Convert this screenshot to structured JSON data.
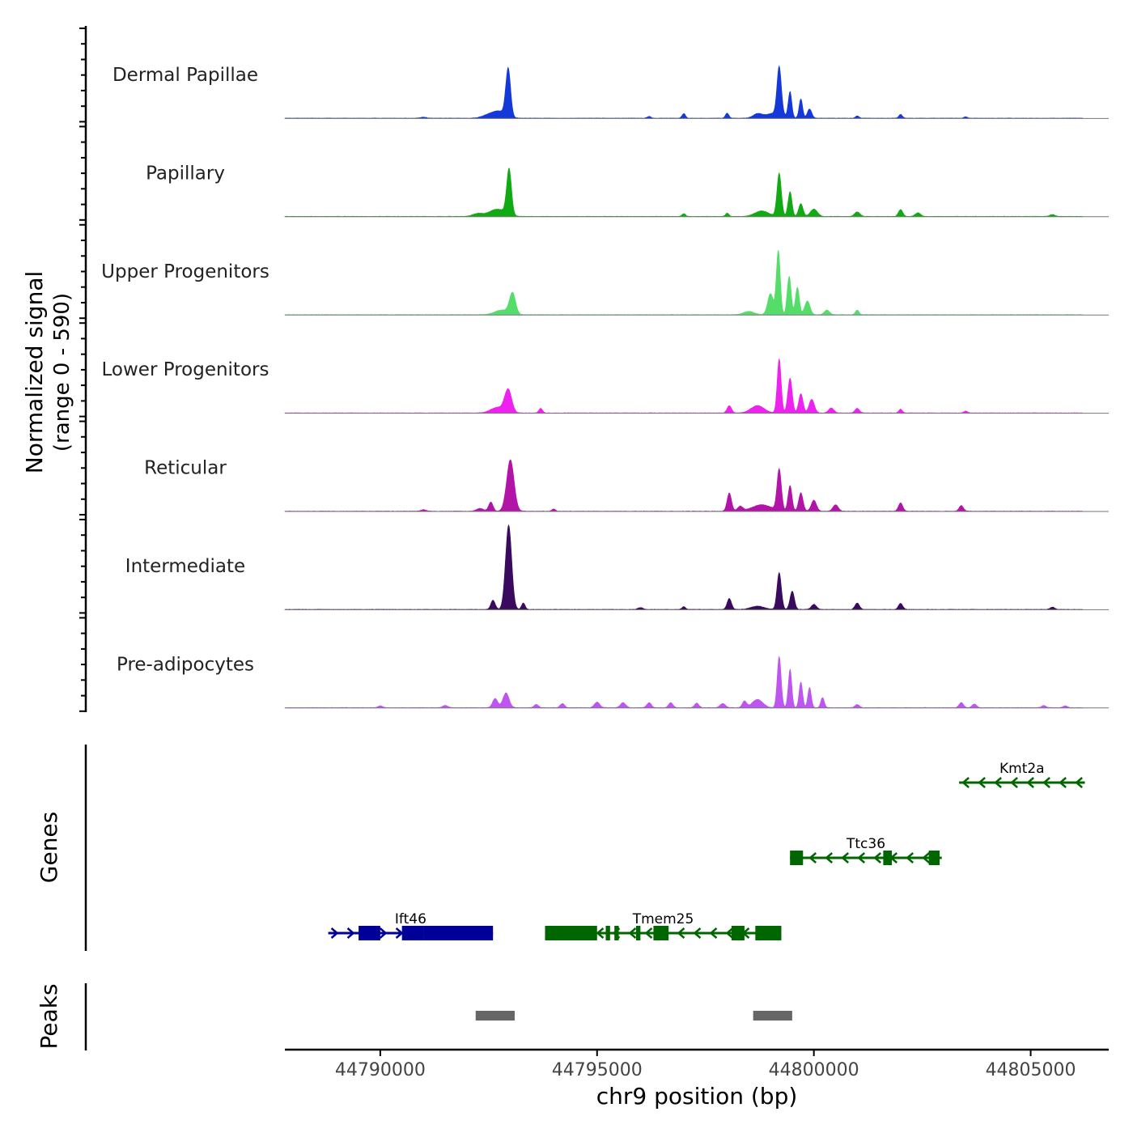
{
  "chart_data": {
    "type": "area",
    "title": "",
    "signal_axis_label": [
      "Normalized signal",
      "(range 0 - 590)"
    ],
    "signal_range": [
      0,
      590
    ],
    "xlabel": "chr9 position (bp)",
    "xlim": [
      44787800,
      44806800
    ],
    "x_ticks": [
      {
        "value": 44790000,
        "label": "44790000"
      },
      {
        "value": 44795000,
        "label": "44795000"
      },
      {
        "value": 44800000,
        "label": "44800000"
      },
      {
        "value": 44805000,
        "label": "44805000"
      }
    ],
    "signal_extent": [
      44787800,
      44806200
    ],
    "track_labels": [
      "Genes",
      "Peaks"
    ],
    "series": [
      {
        "name": "Dermal Papillae",
        "color": "#1539d8",
        "peaks": [
          [
            44792950,
            520,
            55
          ],
          [
            44792750,
            70,
            160
          ],
          [
            44792500,
            30,
            150
          ],
          [
            44799200,
            520,
            50
          ],
          [
            44799450,
            280,
            40
          ],
          [
            44799700,
            210,
            40
          ],
          [
            44799900,
            100,
            50
          ],
          [
            44798700,
            45,
            100
          ],
          [
            44799100,
            55,
            200
          ],
          [
            44797000,
            50,
            40
          ],
          [
            44798000,
            55,
            40
          ],
          [
            44802000,
            40,
            40
          ],
          [
            44801000,
            25,
            40
          ],
          [
            44803500,
            15,
            40
          ],
          [
            44796200,
            20,
            40
          ],
          [
            44791000,
            12,
            60
          ]
        ]
      },
      {
        "name": "Papillary",
        "color": "#12aa14",
        "peaks": [
          [
            44792970,
            500,
            55
          ],
          [
            44792700,
            80,
            180
          ],
          [
            44792250,
            30,
            120
          ],
          [
            44799200,
            470,
            50
          ],
          [
            44799450,
            270,
            45
          ],
          [
            44799700,
            140,
            50
          ],
          [
            44798800,
            60,
            160
          ],
          [
            44800000,
            80,
            80
          ],
          [
            44801000,
            50,
            60
          ],
          [
            44802000,
            75,
            50
          ],
          [
            44802400,
            40,
            60
          ],
          [
            44797000,
            30,
            40
          ],
          [
            44798000,
            35,
            40
          ],
          [
            44805500,
            20,
            60
          ]
        ]
      },
      {
        "name": "Upper Progenitors",
        "color": "#55dd6a",
        "peaks": [
          [
            44793050,
            230,
            70
          ],
          [
            44792800,
            50,
            160
          ],
          [
            44799180,
            700,
            45
          ],
          [
            44799000,
            180,
            60
          ],
          [
            44799430,
            420,
            45
          ],
          [
            44799620,
            300,
            45
          ],
          [
            44799850,
            150,
            60
          ],
          [
            44800300,
            50,
            60
          ],
          [
            44801000,
            50,
            40
          ],
          [
            44798500,
            35,
            120
          ],
          [
            44799000,
            50,
            80
          ]
        ]
      },
      {
        "name": "Lower Progenitors",
        "color": "#ee22ee",
        "peaks": [
          [
            44792950,
            250,
            80
          ],
          [
            44792700,
            60,
            150
          ],
          [
            44793700,
            50,
            40
          ],
          [
            44799200,
            590,
            45
          ],
          [
            44799450,
            380,
            50
          ],
          [
            44799700,
            210,
            50
          ],
          [
            44799950,
            150,
            60
          ],
          [
            44798050,
            80,
            50
          ],
          [
            44798700,
            80,
            150
          ],
          [
            44800400,
            55,
            60
          ],
          [
            44801000,
            50,
            50
          ],
          [
            44802000,
            40,
            40
          ],
          [
            44803500,
            20,
            40
          ]
        ]
      },
      {
        "name": "Reticular",
        "color": "#b214a8",
        "peaks": [
          [
            44793000,
            560,
            85
          ],
          [
            44792550,
            100,
            50
          ],
          [
            44792300,
            30,
            80
          ],
          [
            44798050,
            200,
            50
          ],
          [
            44798300,
            50,
            60
          ],
          [
            44798800,
            70,
            220
          ],
          [
            44799200,
            450,
            50
          ],
          [
            44799450,
            280,
            45
          ],
          [
            44799700,
            200,
            50
          ],
          [
            44800000,
            120,
            60
          ],
          [
            44800500,
            70,
            60
          ],
          [
            44802000,
            90,
            50
          ],
          [
            44803400,
            60,
            50
          ],
          [
            44794000,
            25,
            40
          ],
          [
            44791000,
            15,
            60
          ]
        ]
      },
      {
        "name": "Intermediate",
        "color": "#3a0a5e",
        "peaks": [
          [
            44792960,
            920,
            70
          ],
          [
            44792600,
            100,
            50
          ],
          [
            44793300,
            70,
            40
          ],
          [
            44798050,
            120,
            50
          ],
          [
            44799200,
            400,
            50
          ],
          [
            44799500,
            200,
            50
          ],
          [
            44798700,
            35,
            150
          ],
          [
            44800000,
            55,
            60
          ],
          [
            44801000,
            70,
            50
          ],
          [
            44802000,
            65,
            50
          ],
          [
            44797000,
            30,
            40
          ],
          [
            44796000,
            20,
            60
          ],
          [
            44805500,
            25,
            50
          ]
        ]
      },
      {
        "name": "Pre-adipocytes",
        "color": "#bd55ee",
        "peaks": [
          [
            44792900,
            160,
            70
          ],
          [
            44792650,
            100,
            60
          ],
          [
            44799200,
            560,
            45
          ],
          [
            44799450,
            420,
            40
          ],
          [
            44799700,
            280,
            40
          ],
          [
            44799900,
            220,
            40
          ],
          [
            44800200,
            110,
            40
          ],
          [
            44798700,
            90,
            120
          ],
          [
            44798400,
            70,
            50
          ],
          [
            44795000,
            60,
            60
          ],
          [
            44795600,
            55,
            60
          ],
          [
            44796200,
            55,
            50
          ],
          [
            44796700,
            55,
            50
          ],
          [
            44797300,
            50,
            50
          ],
          [
            44797900,
            45,
            60
          ],
          [
            44794200,
            45,
            50
          ],
          [
            44793600,
            35,
            50
          ],
          [
            44791500,
            25,
            60
          ],
          [
            44790000,
            20,
            50
          ],
          [
            44803400,
            55,
            50
          ],
          [
            44803700,
            40,
            50
          ],
          [
            44801000,
            35,
            50
          ],
          [
            44805300,
            25,
            50
          ],
          [
            44805800,
            20,
            50
          ]
        ]
      }
    ],
    "genes": [
      {
        "name": "Ift46",
        "color": "#000099",
        "strand": "+",
        "start": 44788800,
        "end": 44792600,
        "exons": [
          [
            44789500,
            44790000
          ],
          [
            44790500,
            44791000
          ],
          [
            44791000,
            44792600
          ]
        ]
      },
      {
        "name": "Tmem25",
        "color": "#006600",
        "strand": "-",
        "start": 44793800,
        "end": 44799250,
        "exons": [
          [
            44793800,
            44795000
          ],
          [
            44795200,
            44795300
          ],
          [
            44795400,
            44795500
          ],
          [
            44795900,
            44796000
          ],
          [
            44796300,
            44796650
          ],
          [
            44798100,
            44798400
          ],
          [
            44798650,
            44799250
          ]
        ]
      },
      {
        "name": "Ttc36",
        "color": "#006600",
        "strand": "-",
        "start": 44799450,
        "end": 44802950,
        "exons": [
          [
            44799450,
            44799750
          ],
          [
            44801600,
            44801800
          ],
          [
            44802650,
            44802900
          ]
        ]
      },
      {
        "name": "Kmt2a",
        "color": "#006600",
        "strand": "-",
        "start": 44803350,
        "end": 44806250,
        "exons": []
      }
    ],
    "peak_regions": [
      [
        44792200,
        44793100
      ],
      [
        44798600,
        44799500
      ]
    ]
  }
}
